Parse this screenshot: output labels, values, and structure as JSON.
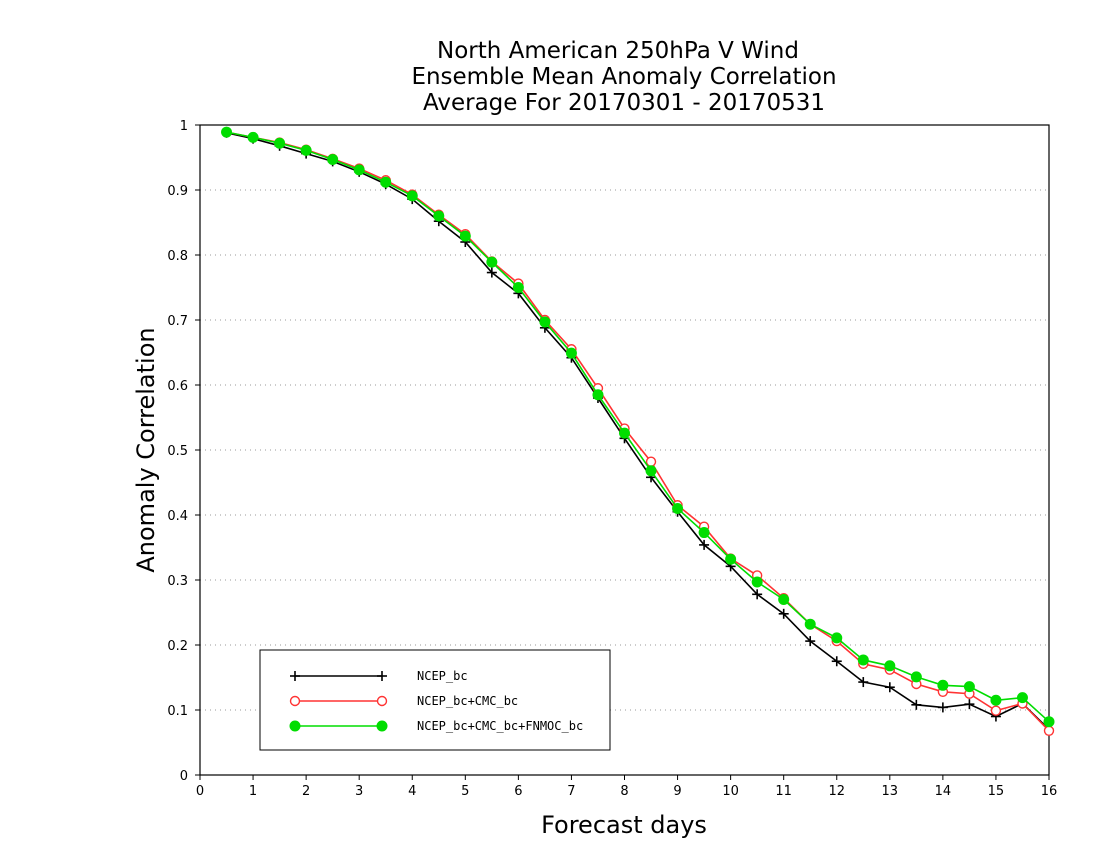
{
  "chart_data": {
    "type": "line",
    "title": [
      "North American 250hPa V Wind",
      "Ensemble Mean Anomaly Correlation",
      "Average For 20170301 - 20170531"
    ],
    "xlabel": "Forecast days",
    "ylabel": "Anomaly Correlation",
    "xlim": [
      0,
      16
    ],
    "ylim": [
      0,
      1
    ],
    "xticks": [
      "0",
      "1",
      "2",
      "3",
      "4",
      "5",
      "6",
      "7",
      "8",
      "9",
      "10",
      "11",
      "12",
      "13",
      "14",
      "15",
      "16"
    ],
    "yticks": [
      "0",
      "0.1",
      "0.2",
      "0.3",
      "0.4",
      "0.5",
      "0.6",
      "0.7",
      "0.8",
      "0.9",
      "1"
    ],
    "grid": "horizontal dotted",
    "legend_position": "bottom-left",
    "x": [
      0.5,
      1,
      1.5,
      2,
      2.5,
      3,
      3.5,
      4,
      4.5,
      5,
      5.5,
      6,
      6.5,
      7,
      7.5,
      8,
      8.5,
      9,
      9.5,
      10,
      10.5,
      11,
      11.5,
      12,
      12.5,
      13,
      13.5,
      14,
      14.5,
      15,
      15.5,
      16
    ],
    "series": [
      {
        "name": "NCEP_bc",
        "color": "#000000",
        "marker": "plus",
        "values": [
          0.988,
          0.979,
          0.968,
          0.956,
          0.944,
          0.928,
          0.909,
          0.886,
          0.852,
          0.82,
          0.773,
          0.741,
          0.688,
          0.642,
          0.58,
          0.518,
          0.458,
          0.405,
          0.354,
          0.321,
          0.278,
          0.248,
          0.206,
          0.175,
          0.143,
          0.135,
          0.108,
          0.104,
          0.109,
          0.09,
          0.11,
          0.07
        ]
      },
      {
        "name": "NCEP_bc+CMC_bc",
        "color": "#ff3333",
        "marker": "open-circle",
        "values": [
          0.989,
          0.981,
          0.973,
          0.962,
          0.948,
          0.933,
          0.915,
          0.893,
          0.862,
          0.832,
          0.79,
          0.756,
          0.7,
          0.655,
          0.595,
          0.533,
          0.482,
          0.415,
          0.382,
          0.333,
          0.307,
          0.272,
          0.232,
          0.206,
          0.171,
          0.162,
          0.14,
          0.128,
          0.125,
          0.099,
          0.11,
          0.068
        ]
      },
      {
        "name": "NCEP_bc+CMC_bc+FNMOC_bc",
        "color": "#00dd00",
        "marker": "filled-circle",
        "values": [
          0.989,
          0.981,
          0.972,
          0.961,
          0.947,
          0.931,
          0.912,
          0.891,
          0.86,
          0.829,
          0.789,
          0.75,
          0.697,
          0.649,
          0.585,
          0.526,
          0.468,
          0.41,
          0.373,
          0.332,
          0.297,
          0.27,
          0.232,
          0.211,
          0.177,
          0.168,
          0.151,
          0.138,
          0.136,
          0.115,
          0.119,
          0.082
        ]
      }
    ]
  }
}
